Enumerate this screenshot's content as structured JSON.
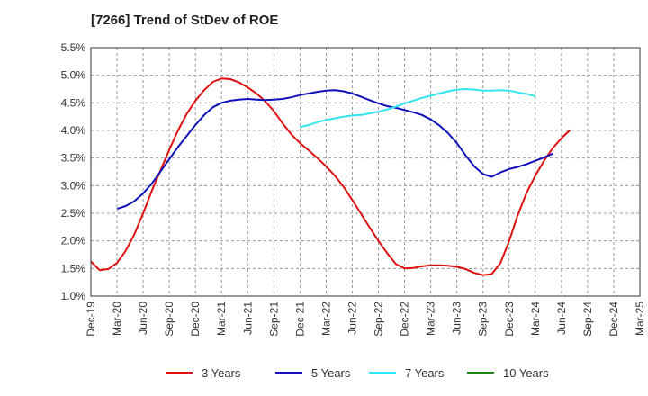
{
  "chart_data": {
    "type": "line",
    "title": "[7266]  Trend of StDev of ROE",
    "xlabel": "",
    "ylabel": "",
    "x_ticks": [
      "Dec-19",
      "Mar-20",
      "Jun-20",
      "Sep-20",
      "Dec-20",
      "Mar-21",
      "Jun-21",
      "Sep-21",
      "Dec-21",
      "Mar-22",
      "Jun-22",
      "Sep-22",
      "Dec-22",
      "Mar-23",
      "Jun-23",
      "Sep-23",
      "Dec-23",
      "Mar-24",
      "Jun-24",
      "Sep-24",
      "Dec-24",
      "Mar-25"
    ],
    "y_ticks": [
      "1.0%",
      "1.5%",
      "2.0%",
      "2.5%",
      "3.0%",
      "3.5%",
      "4.0%",
      "4.5%",
      "5.0%",
      "5.5%"
    ],
    "ylim": [
      1.0,
      5.5
    ],
    "grid": true,
    "legend_position": "bottom",
    "series": [
      {
        "name": "3 Years",
        "color": "#dd1111",
        "points": [
          [
            0,
            1.63
          ],
          [
            1,
            1.47
          ],
          [
            2,
            1.49
          ],
          [
            3,
            1.6
          ],
          [
            4,
            1.82
          ],
          [
            5,
            2.12
          ],
          [
            6,
            2.5
          ],
          [
            7,
            2.91
          ],
          [
            8,
            3.28
          ],
          [
            9,
            3.65
          ],
          [
            10,
            4.0
          ],
          [
            11,
            4.3
          ],
          [
            12,
            4.54
          ],
          [
            13,
            4.73
          ],
          [
            14,
            4.88
          ],
          [
            15,
            4.94
          ],
          [
            16,
            4.93
          ],
          [
            17,
            4.87
          ],
          [
            18,
            4.78
          ],
          [
            19,
            4.67
          ],
          [
            20,
            4.53
          ],
          [
            21,
            4.35
          ],
          [
            22,
            4.13
          ],
          [
            23,
            3.93
          ],
          [
            24,
            3.77
          ],
          [
            25,
            3.64
          ],
          [
            26,
            3.5
          ],
          [
            27,
            3.35
          ],
          [
            28,
            3.18
          ],
          [
            29,
            2.98
          ],
          [
            30,
            2.74
          ],
          [
            31,
            2.49
          ],
          [
            32,
            2.24
          ],
          [
            33,
            2.0
          ],
          [
            34,
            1.78
          ],
          [
            35,
            1.58
          ],
          [
            36,
            1.5
          ],
          [
            37,
            1.51
          ],
          [
            38,
            1.54
          ],
          [
            39,
            1.56
          ],
          [
            40,
            1.56
          ],
          [
            41,
            1.55
          ],
          [
            42,
            1.53
          ],
          [
            43,
            1.49
          ],
          [
            44,
            1.42
          ],
          [
            45,
            1.38
          ],
          [
            46,
            1.4
          ],
          [
            47,
            1.6
          ],
          [
            48,
            2.0
          ],
          [
            49,
            2.47
          ],
          [
            50,
            2.87
          ],
          [
            51,
            3.18
          ],
          [
            52,
            3.45
          ],
          [
            53,
            3.68
          ],
          [
            54,
            3.86
          ],
          [
            55,
            4.01
          ]
        ]
      },
      {
        "name": "5 Years",
        "color": "#1111bb",
        "points": [
          [
            3,
            2.58
          ],
          [
            4,
            2.63
          ],
          [
            5,
            2.72
          ],
          [
            6,
            2.86
          ],
          [
            7,
            3.04
          ],
          [
            8,
            3.26
          ],
          [
            9,
            3.48
          ],
          [
            10,
            3.7
          ],
          [
            11,
            3.9
          ],
          [
            12,
            4.1
          ],
          [
            13,
            4.28
          ],
          [
            14,
            4.42
          ],
          [
            15,
            4.5
          ],
          [
            16,
            4.54
          ],
          [
            17,
            4.56
          ],
          [
            18,
            4.57
          ],
          [
            19,
            4.56
          ],
          [
            20,
            4.55
          ],
          [
            21,
            4.56
          ],
          [
            22,
            4.57
          ],
          [
            23,
            4.6
          ],
          [
            24,
            4.64
          ],
          [
            25,
            4.67
          ],
          [
            26,
            4.7
          ],
          [
            27,
            4.72
          ],
          [
            28,
            4.73
          ],
          [
            29,
            4.71
          ],
          [
            30,
            4.67
          ],
          [
            31,
            4.61
          ],
          [
            32,
            4.55
          ],
          [
            33,
            4.49
          ],
          [
            34,
            4.44
          ],
          [
            35,
            4.41
          ],
          [
            36,
            4.37
          ],
          [
            37,
            4.33
          ],
          [
            38,
            4.28
          ],
          [
            39,
            4.2
          ],
          [
            40,
            4.09
          ],
          [
            41,
            3.95
          ],
          [
            42,
            3.77
          ],
          [
            43,
            3.55
          ],
          [
            44,
            3.35
          ],
          [
            45,
            3.21
          ],
          [
            46,
            3.16
          ],
          [
            47,
            3.24
          ],
          [
            48,
            3.3
          ],
          [
            49,
            3.34
          ],
          [
            50,
            3.39
          ],
          [
            51,
            3.45
          ],
          [
            52,
            3.51
          ],
          [
            53,
            3.58
          ]
        ]
      },
      {
        "name": "7 Years",
        "color": "#33e5f0",
        "points": [
          [
            24,
            4.06
          ],
          [
            25,
            4.1
          ],
          [
            26,
            4.15
          ],
          [
            27,
            4.19
          ],
          [
            28,
            4.22
          ],
          [
            29,
            4.25
          ],
          [
            30,
            4.27
          ],
          [
            31,
            4.28
          ],
          [
            32,
            4.31
          ],
          [
            33,
            4.34
          ],
          [
            34,
            4.38
          ],
          [
            35,
            4.43
          ],
          [
            36,
            4.49
          ],
          [
            37,
            4.54
          ],
          [
            38,
            4.59
          ],
          [
            39,
            4.63
          ],
          [
            40,
            4.67
          ],
          [
            41,
            4.71
          ],
          [
            42,
            4.74
          ],
          [
            43,
            4.75
          ],
          [
            44,
            4.74
          ],
          [
            45,
            4.72
          ],
          [
            46,
            4.72
          ],
          [
            47,
            4.73
          ],
          [
            48,
            4.72
          ],
          [
            49,
            4.69
          ],
          [
            50,
            4.66
          ],
          [
            51,
            4.62
          ]
        ]
      },
      {
        "name": "10 Years",
        "color": "#118811",
        "points": []
      }
    ]
  }
}
